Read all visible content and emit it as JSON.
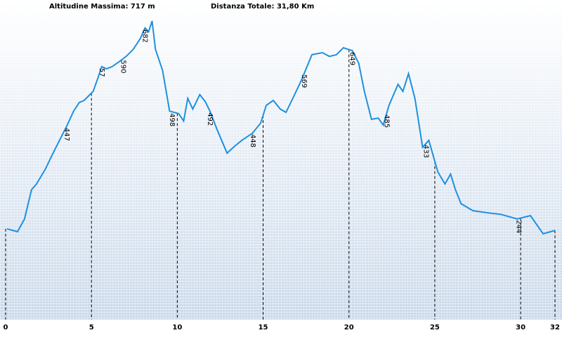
{
  "chart_data": {
    "type": "line",
    "header_left": "Altitudine Massima: 717 m",
    "header_right": "Distanza Totale: 31,80 Km",
    "color": "#1e90e0",
    "x": [
      0.08,
      0.69,
      1.1,
      1.51,
      1.8,
      2.33,
      2.73,
      3.14,
      3.55,
      3.96,
      4.29,
      4.57,
      5.1,
      5.39,
      5.6,
      5.88,
      6.2,
      6.61,
      7.02,
      7.43,
      7.84,
      8.12,
      8.33,
      8.53,
      8.73,
      9.14,
      9.55,
      10.08,
      10.37,
      10.61,
      10.9,
      11.31,
      11.63,
      11.9,
      12.33,
      12.9,
      13.35,
      13.76,
      14.37,
      14.86,
      15.18,
      15.59,
      16.0,
      16.33,
      16.73,
      17.22,
      17.84,
      18.45,
      18.86,
      19.27,
      19.67,
      20.2,
      20.57,
      20.9,
      21.31,
      21.71,
      22.0,
      22.33,
      22.86,
      23.14,
      23.47,
      23.84,
      24.29,
      24.65,
      25.18,
      25.59,
      25.92,
      26.2,
      26.53,
      27.22,
      28.04,
      28.86,
      29.8,
      30.57,
      31.31,
      32.0
    ],
    "values": [
      212,
      205,
      236,
      307,
      321,
      358,
      393,
      427,
      461,
      498,
      519,
      524,
      546,
      580,
      606,
      601,
      606,
      618,
      631,
      648,
      674,
      700,
      691,
      717,
      648,
      597,
      498,
      492,
      474,
      529,
      503,
      538,
      521,
      498,
      452,
      396,
      413,
      427,
      444,
      469,
      512,
      524,
      503,
      495,
      529,
      572,
      635,
      640,
      631,
      635,
      652,
      645,
      614,
      546,
      478,
      481,
      464,
      512,
      563,
      546,
      589,
      529,
      410,
      427,
      350,
      321,
      345,
      307,
      273,
      256,
      251,
      247,
      236,
      244,
      200,
      208
    ],
    "annotations": [
      {
        "x": 3.55,
        "text": "447"
      },
      {
        "x": 5.6,
        "text": "57"
      },
      {
        "x": 6.85,
        "text": "590"
      },
      {
        "x": 8.12,
        "text": "682"
      },
      {
        "x": 9.7,
        "text": "498"
      },
      {
        "x": 11.9,
        "text": "492"
      },
      {
        "x": 14.4,
        "text": "448"
      },
      {
        "x": 17.4,
        "text": "569"
      },
      {
        "x": 20.2,
        "text": "649"
      },
      {
        "x": 22.2,
        "text": "485"
      },
      {
        "x": 24.5,
        "text": "433"
      },
      {
        "x": 29.9,
        "text": "244"
      }
    ],
    "xlim": [
      0,
      32
    ],
    "xticks": [
      0,
      5,
      10,
      15,
      20,
      25,
      30,
      32
    ],
    "ylim": [
      0,
      768
    ]
  }
}
